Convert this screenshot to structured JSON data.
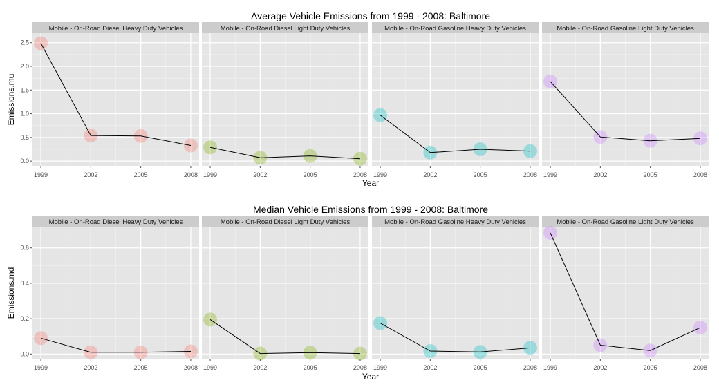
{
  "chart_data": [
    {
      "type": "line",
      "title": "Average Vehicle Emissions from 1999 - 2008: Baltimore",
      "xlabel": "Year",
      "ylabel": "Emissions.mu",
      "ylim": [
        -0.1,
        2.7
      ],
      "yticks": [
        0.0,
        0.5,
        1.0,
        1.5,
        2.0,
        2.5
      ],
      "yticklabels": [
        "0.0",
        "0.5",
        "1.0",
        "1.5",
        "2.0",
        "2.5"
      ],
      "categories": [
        "1999",
        "2002",
        "2005",
        "2008"
      ],
      "grid": true,
      "facets": [
        {
          "name": "Mobile - On-Road Diesel Heavy Duty Vehicles",
          "color": "#F8766D",
          "values": [
            2.49,
            0.54,
            0.53,
            0.33
          ]
        },
        {
          "name": "Mobile - On-Road Diesel Light Duty Vehicles",
          "color": "#7CAE00",
          "values": [
            0.29,
            0.07,
            0.11,
            0.05
          ]
        },
        {
          "name": "Mobile - On-Road Gasoline Heavy Duty Vehicles",
          "color": "#00BFC4",
          "values": [
            0.97,
            0.18,
            0.25,
            0.21
          ]
        },
        {
          "name": "Mobile - On-Road Gasoline Light Duty Vehicles",
          "color": "#C77CFF",
          "values": [
            1.68,
            0.51,
            0.43,
            0.48
          ]
        }
      ]
    },
    {
      "type": "line",
      "title": "Median Vehicle Emissions from 1999 - 2008: Baltimore",
      "xlabel": "Year",
      "ylabel": "Emissions.md",
      "ylim": [
        -0.03,
        0.72
      ],
      "yticks": [
        0.0,
        0.2,
        0.4,
        0.6
      ],
      "yticklabels": [
        "0.0",
        "0.2",
        "0.4",
        "0.6"
      ],
      "categories": [
        "1999",
        "2002",
        "2005",
        "2008"
      ],
      "grid": true,
      "facets": [
        {
          "name": "Mobile - On-Road Diesel Heavy Duty Vehicles",
          "color": "#F8766D",
          "values": [
            0.09,
            0.01,
            0.01,
            0.015
          ]
        },
        {
          "name": "Mobile - On-Road Diesel Light Duty Vehicles",
          "color": "#7CAE00",
          "values": [
            0.195,
            0.003,
            0.008,
            0.003
          ]
        },
        {
          "name": "Mobile - On-Road Gasoline Heavy Duty Vehicles",
          "color": "#00BFC4",
          "values": [
            0.175,
            0.017,
            0.012,
            0.035
          ]
        },
        {
          "name": "Mobile - On-Road Gasoline Light Duty Vehicles",
          "color": "#C77CFF",
          "values": [
            0.685,
            0.05,
            0.02,
            0.15
          ]
        }
      ]
    }
  ]
}
